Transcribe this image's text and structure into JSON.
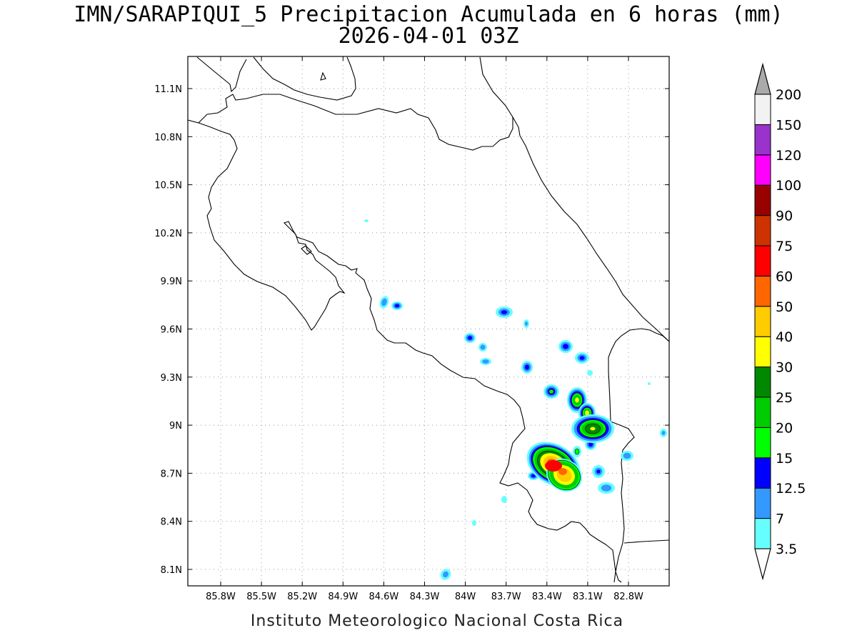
{
  "header": {
    "title_line1": "IMN/SARAPIQUI_5 Precipitacion Acumulada en 6 horas (mm)",
    "title_line2": "2026-04-01 03Z"
  },
  "footer": {
    "credit": "Instituto Meteorologico Nacional Costa Rica"
  },
  "map": {
    "lon_ticks": [
      "85.8W",
      "85.5W",
      "85.2W",
      "84.9W",
      "84.6W",
      "84.3W",
      "84W",
      "83.7W",
      "83.4W",
      "83.1W",
      "82.8W"
    ],
    "lat_ticks": [
      "11.1N",
      "10.8N",
      "10.5N",
      "10.2N",
      "9.9N",
      "9.6N",
      "9.3N",
      "9N",
      "8.7N",
      "8.4N",
      "8.1N"
    ],
    "grid": true
  },
  "colorbar": {
    "labels": [
      "3.5",
      "7",
      "12.5",
      "15",
      "20",
      "25",
      "30",
      "40",
      "50",
      "60",
      "75",
      "90",
      "100",
      "120",
      "150",
      "200"
    ],
    "colors": [
      "#66ffff",
      "#3399ff",
      "#0000ff",
      "#00ff00",
      "#00cc00",
      "#008800",
      "#ffff00",
      "#ffcc00",
      "#ff6600",
      "#ff0000",
      "#cc3300",
      "#990000",
      "#ff00ff",
      "#9933cc",
      "#f2f2f2"
    ],
    "over_color": "#aaaaaa",
    "under_color": "#ffffff"
  }
}
